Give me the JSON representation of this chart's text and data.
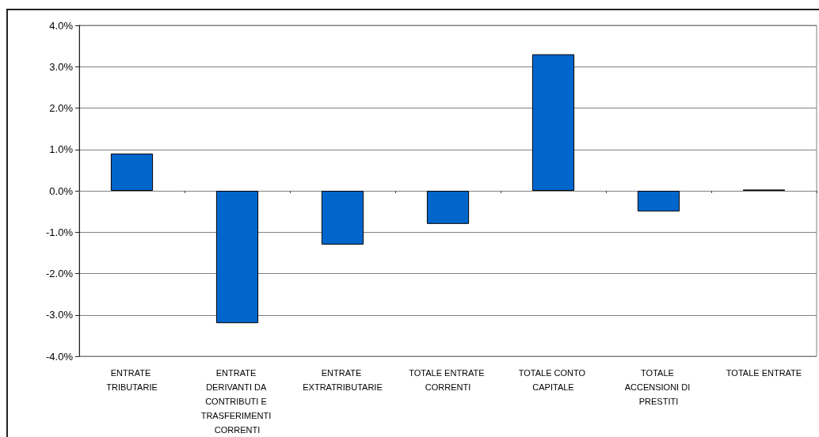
{
  "chart_data": {
    "type": "bar",
    "categories": [
      "ENTRATE TRIBUTARIE",
      "ENTRATE DERIVANTI DA CONTRIBUTI E TRASFERIMENTI CORRENTI",
      "ENTRATE EXTRATRIBUTARIE",
      "TOTALE ENTRATE CORRENTI",
      "TOTALE CONTO CAPITALE",
      "TOTALE ACCENSIONI DI PRESTITI",
      "TOTALE ENTRATE"
    ],
    "values": [
      0.9,
      -3.2,
      -1.3,
      -0.8,
      3.3,
      -0.5,
      0.03
    ],
    "color": "#0066cc",
    "ylim": [
      -4,
      4
    ],
    "yticks": [
      {
        "value": -4,
        "label": "-4.0%"
      },
      {
        "value": -3,
        "label": "-3.0%"
      },
      {
        "value": -2,
        "label": "-2.0%"
      },
      {
        "value": -1,
        "label": "-1.0%"
      },
      {
        "value": 0,
        "label": "0.0%"
      },
      {
        "value": 1,
        "label": "1.0%"
      },
      {
        "value": 2,
        "label": "2.0%"
      },
      {
        "value": 3,
        "label": "3.0%"
      },
      {
        "value": 4,
        "label": "4.0%"
      }
    ],
    "grid": "y"
  }
}
